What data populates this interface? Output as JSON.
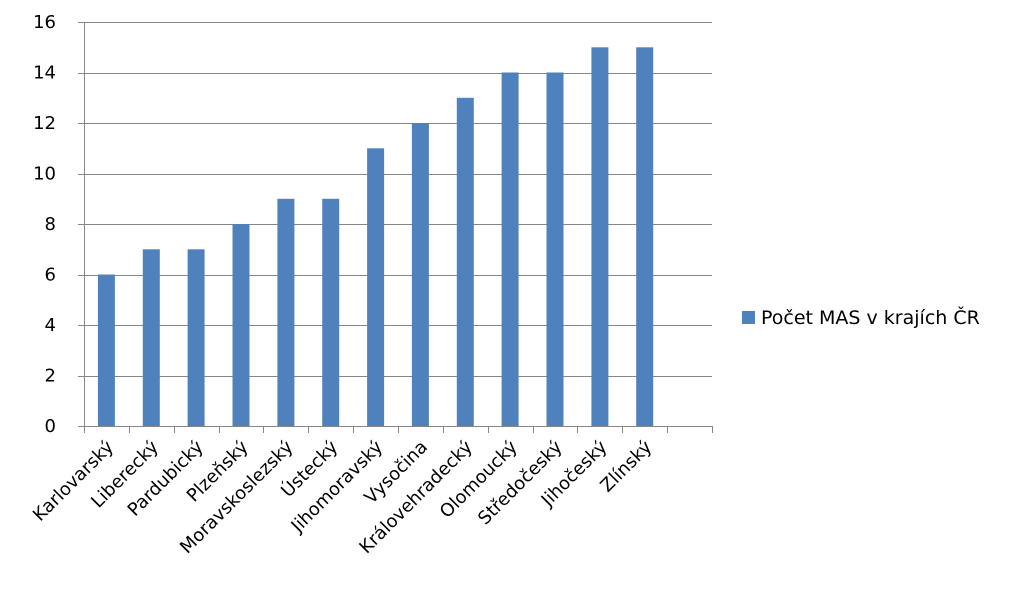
{
  "chart_data": {
    "type": "bar",
    "categories": [
      "Karlovarský",
      "Liberecký",
      "Pardubický",
      "Plzeňský",
      "Moravskoslezský",
      "Ústecký",
      "Jihomoravský",
      "Vysočina",
      "Královehradecký",
      "Olomoucký",
      "Středočeský",
      "Jihočeský",
      "Zlínský",
      ""
    ],
    "series": [
      {
        "name": "Počet MAS v krajích ČR",
        "values": [
          6,
          7,
          7,
          8,
          9,
          9,
          11,
          12,
          13,
          14,
          14,
          15,
          15,
          null
        ]
      }
    ],
    "ylim": [
      0,
      16
    ],
    "yticks": [
      0,
      2,
      4,
      6,
      8,
      10,
      12,
      14,
      16
    ],
    "grid": true,
    "legend_position": "right",
    "colors": {
      "bar": "#4f81bd",
      "grid": "#868686",
      "axis": "#868686"
    }
  }
}
